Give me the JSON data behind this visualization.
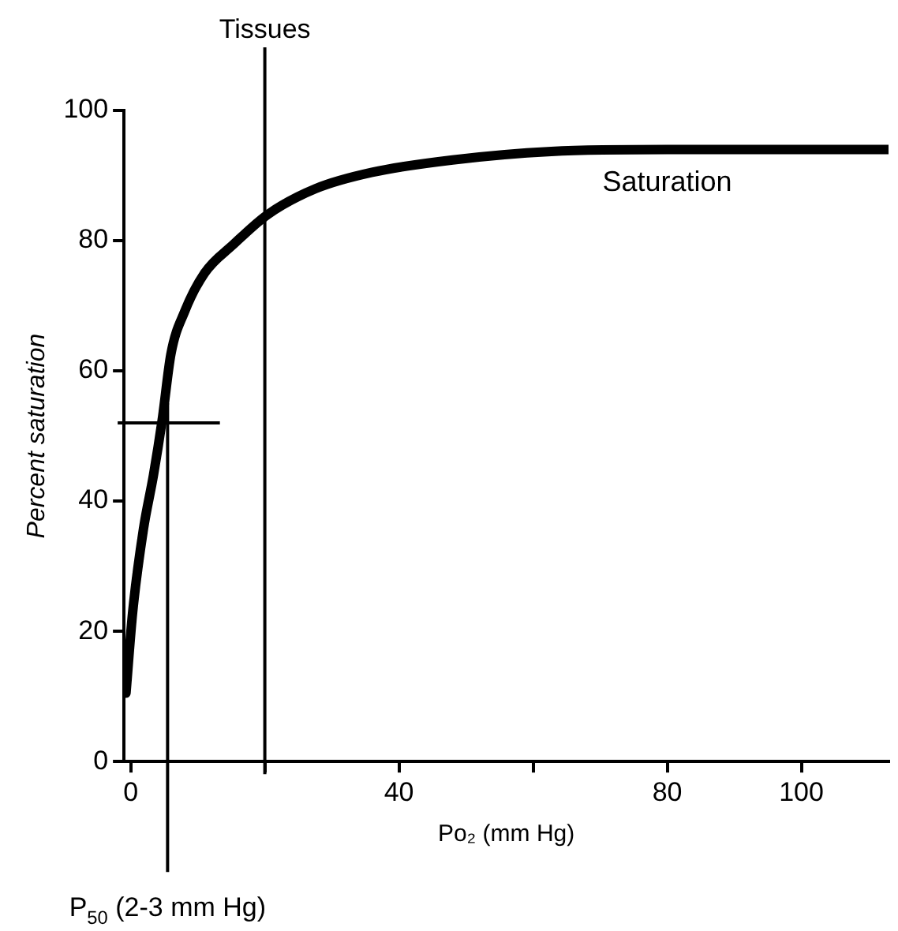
{
  "chart_data": {
    "type": "line",
    "xlabel": "Po₂ (mm Hg)",
    "ylabel": "Percent saturation",
    "xlim": [
      -1,
      113
    ],
    "xticks": [
      0,
      {
        "value": 20,
        "label": null
      },
      40,
      {
        "value": 60,
        "label": null
      },
      80,
      100
    ],
    "ylim": [
      0,
      100
    ],
    "yticks": [
      0,
      20,
      40,
      60,
      80,
      100
    ],
    "grid": false,
    "legend": false,
    "marker": "none",
    "line_style": "solid",
    "series": [
      {
        "color": "#000000",
        "x": [
          -0.7,
          0.3,
          1.9,
          3.4,
          4.7,
          6,
          8,
          11,
          15.3,
          20.4,
          27.6,
          36,
          48,
          62.7,
          80,
          100,
          113
        ],
        "values": [
          10.5,
          23,
          35.7,
          44,
          52.5,
          62.6,
          69,
          75,
          79.4,
          84,
          88,
          90.5,
          92.4,
          93.7,
          94,
          94,
          94
        ]
      }
    ],
    "ref_lines": [
      {
        "axis": "x",
        "value": 20,
        "label": "Tissues"
      },
      {
        "axis": "x",
        "value": 5.5,
        "label": "P$_{50}$ (2-3 mm Hg)"
      },
      {
        "axis": "y",
        "value": 52
      }
    ],
    "annotations": [
      {
        "text": "Saturation",
        "x": 80,
        "y": 94
      }
    ]
  }
}
